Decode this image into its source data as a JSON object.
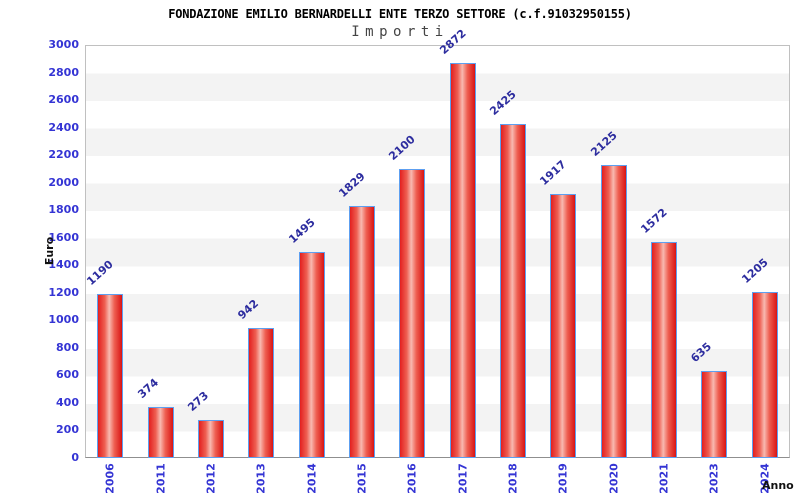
{
  "chart_data": {
    "type": "bar",
    "title": "FONDAZIONE EMILIO BERNARDELLI ENTE TERZO SETTORE (c.f.91032950155)",
    "subtitle": "Importi",
    "xlabel": "Anno",
    "ylabel": "Euro",
    "categories": [
      "2006",
      "2011",
      "2012",
      "2013",
      "2014",
      "2015",
      "2016",
      "2017",
      "2018",
      "2019",
      "2020",
      "2021",
      "2023",
      "2024"
    ],
    "values": [
      1190,
      374,
      273,
      942,
      1495,
      1829,
      2100,
      2872,
      2425,
      1917,
      2125,
      1572,
      635,
      1205
    ],
    "ylim": [
      0,
      3000
    ],
    "yticks": [
      0,
      200,
      400,
      600,
      800,
      1000,
      1200,
      1400,
      1600,
      1800,
      2000,
      2200,
      2400,
      2600,
      2800,
      3000
    ],
    "legend": "none",
    "grid": "horizontal gridlines with alternating white/gray bands",
    "colors": {
      "bar_fill_edge": "#d91414",
      "bar_fill_center": "#f8b9b0",
      "bar_border": "#5d9ff0",
      "tick_label": "#3434d4",
      "value_label": "#2d2d9f",
      "band_gray": "#f3f3f3",
      "gridline": "#dadada",
      "title": "#000000",
      "subtitle": "#444444"
    }
  }
}
